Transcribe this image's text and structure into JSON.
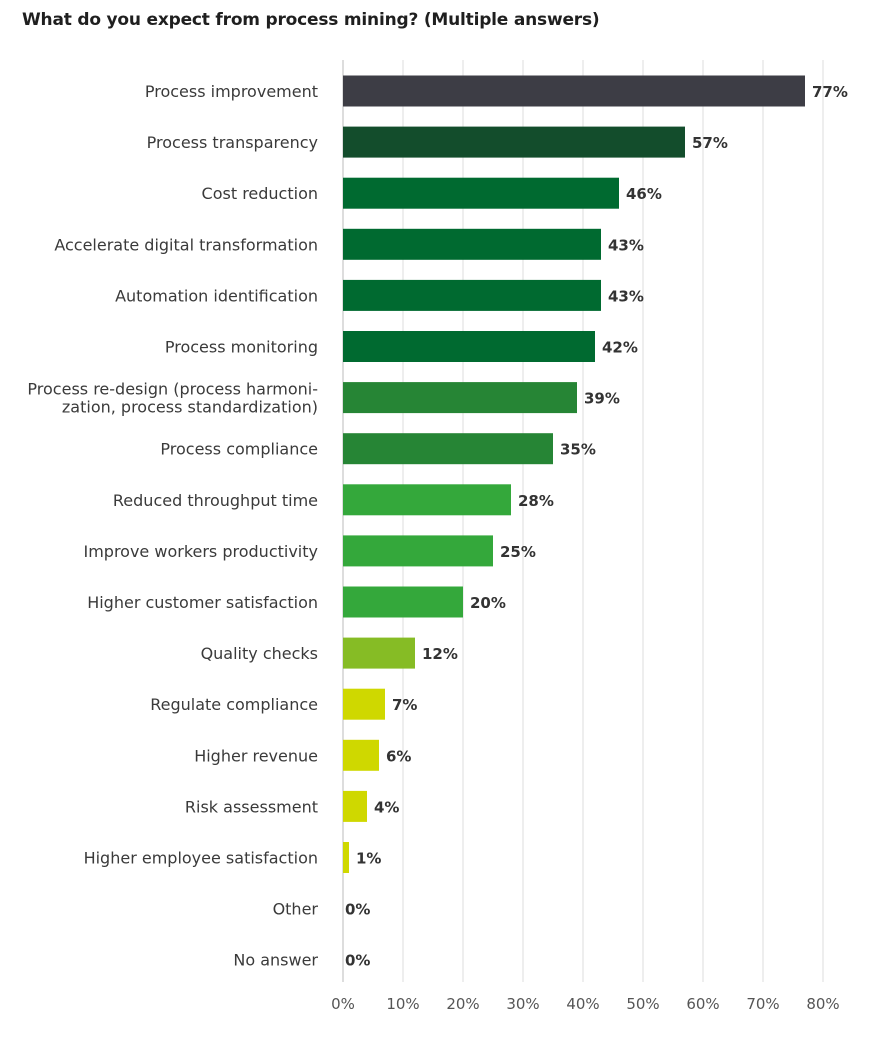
{
  "chart_data": {
    "type": "bar",
    "orientation": "horizontal",
    "title": "What do you expect from process mining? (Multiple answers)",
    "categories": [
      "Process improvement",
      "Process transparency",
      "Cost reduction",
      "Accelerate digital transformation",
      "Automation identification",
      "Process monitoring",
      "Process re-design (process harmoni-\nzation, process standardization)",
      "Process compliance",
      "Reduced throughput time",
      "Improve workers productivity",
      "Higher customer satisfaction",
      "Quality checks",
      "Regulate compliance",
      "Higher revenue",
      "Risk assessment",
      "Higher employee satisfaction",
      "Other",
      "No answer"
    ],
    "values": [
      77,
      57,
      46,
      43,
      43,
      42,
      39,
      35,
      28,
      25,
      20,
      12,
      7,
      6,
      4,
      1,
      0,
      0
    ],
    "value_labels": [
      "77%",
      "57%",
      "46%",
      "43%",
      "43%",
      "42%",
      "39%",
      "35%",
      "28%",
      "25%",
      "20%",
      "12%",
      "7%",
      "6%",
      "4%",
      "1%",
      "0%",
      "0%"
    ],
    "bar_colors": [
      "#3d3d45",
      "#134d2c",
      "#006a30",
      "#006a30",
      "#006a30",
      "#006a30",
      "#268535",
      "#268535",
      "#34a83b",
      "#34a83b",
      "#34a83b",
      "#86bc25",
      "#cfd800",
      "#cfd800",
      "#cfd800",
      "#cfd800",
      "#cfd800",
      "#cfd800"
    ],
    "xlim": [
      0,
      80
    ],
    "xticks": [
      0,
      10,
      20,
      30,
      40,
      50,
      60,
      70,
      80
    ],
    "xtick_labels": [
      "0%",
      "10%",
      "20%",
      "30%",
      "40%",
      "50%",
      "60%",
      "70%",
      "80%"
    ],
    "grid": true,
    "grid_color": "#dddddd",
    "legend": "none"
  }
}
